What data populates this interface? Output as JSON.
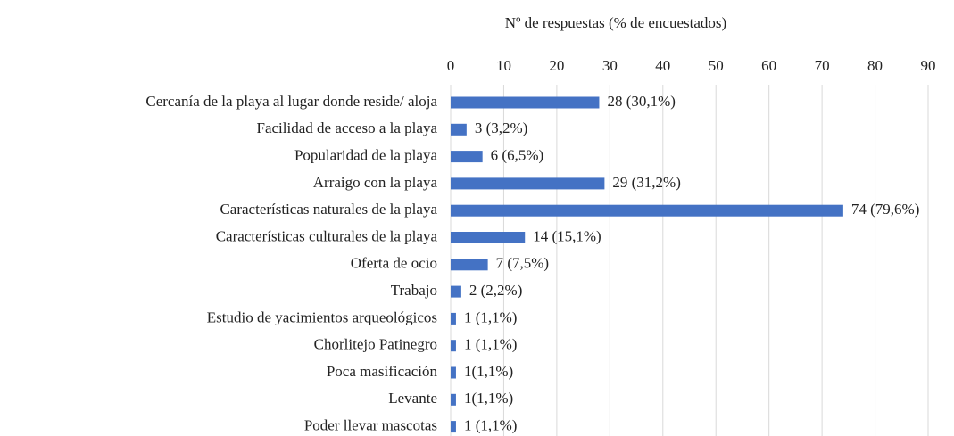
{
  "chart_data": {
    "type": "bar",
    "orientation": "horizontal",
    "axis_label": "Nº de respuestas (% de encuestados)",
    "categories": [
      "Cercanía de la playa al lugar donde reside/ aloja",
      "Facilidad de acceso a la playa",
      "Popularidad de la playa",
      "Arraigo con la playa",
      "Características naturales de la playa",
      "Características culturales de la playa",
      "Oferta de ocio",
      "Trabajo",
      "Estudio de yacimientos arqueológicos",
      "Chorlitejo Patinegro",
      "Poca masificación",
      "Levante",
      "Poder llevar mascotas"
    ],
    "values": [
      28,
      3,
      6,
      29,
      74,
      14,
      7,
      2,
      1,
      1,
      1,
      1,
      1
    ],
    "value_labels": [
      "28 (30,1%)",
      "3 (3,2%)",
      "6 (6,5%)",
      "29 (31,2%)",
      "74 (79,6%)",
      "14 (15,1%)",
      "7 (7,5%)",
      "2 (2,2%)",
      "1 (1,1%)",
      "1 (1,1%)",
      "1(1,1%)",
      "1(1,1%)",
      "1 (1,1%)"
    ],
    "color": "#4472c4",
    "xlim": [
      0,
      90
    ],
    "xticks": [
      0,
      10,
      20,
      30,
      40,
      50,
      60,
      70,
      80,
      90
    ],
    "grid": true
  }
}
